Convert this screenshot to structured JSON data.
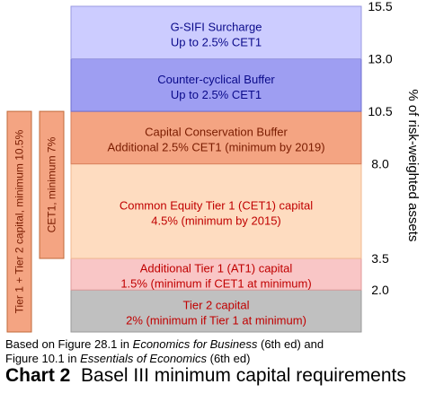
{
  "chart_data": {
    "type": "stacked-bar",
    "yaxis": {
      "label": "% of risk-weighted assets",
      "ticks": [
        "15.5",
        "13.0",
        "10.5",
        "8.0",
        "3.5",
        "2.0"
      ],
      "ylim": [
        0,
        15.5
      ]
    },
    "segments": [
      {
        "line1": "Tier 2 capital",
        "line2": "2% (minimum if Tier 1 at minimum)",
        "from": 0,
        "to": 2.0,
        "fill": "#c0c0c0",
        "stroke": "#9a9a9a",
        "text_color": "#c00000"
      },
      {
        "line1": "Additional Tier 1 (AT1) capital",
        "line2": "1.5% (minimum if CET1 at minimum)",
        "from": 2.0,
        "to": 3.5,
        "fill": "#f9c6c6",
        "stroke": "#e09a9a",
        "text_color": "#c00000"
      },
      {
        "line1": "Common Equity Tier 1 (CET1) capital",
        "line2": "4.5% (minimum by 2015)",
        "from": 3.5,
        "to": 8.0,
        "fill": "#fedcc0",
        "stroke": "#f0b890",
        "text_color": "#c00000"
      },
      {
        "line1": "Capital Conservation Buffer",
        "line2": "Additional 2.5% CET1 (minimum by 2019)",
        "from": 8.0,
        "to": 10.5,
        "fill": "#f4a482",
        "stroke": "#d9805c",
        "text_color": "#7a1c00"
      },
      {
        "line1": "Counter-cyclical Buffer",
        "line2": "Up to 2.5% CET1",
        "from": 10.5,
        "to": 13.0,
        "fill": "#9e9ef2",
        "stroke": "#6f6fd0",
        "text_color": "#0a0a8a"
      },
      {
        "line1": "G-SIFI Surcharge",
        "line2": "Up to 2.5% CET1",
        "from": 13.0,
        "to": 15.5,
        "fill": "#ccccff",
        "stroke": "#9a9ae0",
        "text_color": "#0a0a8a"
      }
    ],
    "side_bars": [
      {
        "label": "Tier 1 + Tier 2 capital, minimum 10.5%",
        "from": 0,
        "to": 10.5,
        "fill": "#f4a482",
        "stroke": "#c06a3a",
        "text_color": "#7a1c00"
      },
      {
        "label": "CET1, minimum 7%",
        "from": 3.5,
        "to": 10.5,
        "fill": "#f4a482",
        "stroke": "#c06a3a",
        "text_color": "#7a1c00"
      }
    ]
  },
  "notes": {
    "line1_pre": "Based on Figure 28.1 in ",
    "line1_em": "Economics for Business",
    "line1_post": " (6th ed) and",
    "line2_pre": "Figure 10.1 in ",
    "line2_em": "Essentials of Economics",
    "line2_post": " (6th ed)"
  },
  "caption": {
    "bold": "Chart 2",
    "text": "Basel III minimum capital requirements"
  }
}
